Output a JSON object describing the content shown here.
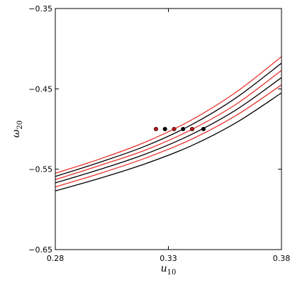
{
  "chart_data": {
    "type": "line",
    "title": "",
    "xlabel": "u",
    "xlabel_sub": "10",
    "ylabel": "ω",
    "ylabel_sub": "20",
    "xlim": [
      0.28,
      0.38
    ],
    "ylim": [
      -0.65,
      -0.35
    ],
    "xticks": [
      0.28,
      0.33,
      0.38
    ],
    "yticks": [
      -0.65,
      -0.55,
      -0.45,
      -0.35
    ],
    "xtick_labels": [
      "0.28",
      "0.33",
      "0.38"
    ],
    "ytick_labels": [
      "−0.65",
      "−0.55",
      "−0.45",
      "−0.35"
    ],
    "grid": false,
    "legend": "none",
    "series": [
      {
        "color": "#e8322b",
        "x": [
          0.28,
          0.3,
          0.32,
          0.34,
          0.36,
          0.38
        ],
        "y": [
          -0.555,
          -0.537,
          -0.516,
          -0.489,
          -0.454,
          -0.41
        ]
      },
      {
        "color": "#000000",
        "x": [
          0.28,
          0.3,
          0.32,
          0.34,
          0.36,
          0.38
        ],
        "y": [
          -0.559,
          -0.541,
          -0.521,
          -0.495,
          -0.461,
          -0.418
        ]
      },
      {
        "color": "#e8322b",
        "x": [
          0.28,
          0.3,
          0.32,
          0.34,
          0.36,
          0.38
        ],
        "y": [
          -0.563,
          -0.545,
          -0.526,
          -0.501,
          -0.469,
          -0.427
        ]
      },
      {
        "color": "#000000",
        "x": [
          0.28,
          0.3,
          0.32,
          0.34,
          0.36,
          0.38
        ],
        "y": [
          -0.567,
          -0.55,
          -0.531,
          -0.507,
          -0.476,
          -0.436
        ]
      },
      {
        "color": "#e8322b",
        "x": [
          0.28,
          0.3,
          0.32,
          0.34,
          0.36,
          0.38
        ],
        "y": [
          -0.572,
          -0.555,
          -0.536,
          -0.513,
          -0.483,
          -0.445
        ]
      },
      {
        "color": "#000000",
        "x": [
          0.28,
          0.3,
          0.32,
          0.34,
          0.36,
          0.38
        ],
        "y": [
          -0.577,
          -0.561,
          -0.543,
          -0.521,
          -0.492,
          -0.455
        ]
      }
    ],
    "points": [
      {
        "x": 0.3245,
        "y": -0.5,
        "color": "#b01818"
      },
      {
        "x": 0.3285,
        "y": -0.5,
        "color": "#000000"
      },
      {
        "x": 0.3325,
        "y": -0.5,
        "color": "#b01818"
      },
      {
        "x": 0.3365,
        "y": -0.5,
        "color": "#000000"
      },
      {
        "x": 0.3405,
        "y": -0.5,
        "color": "#b01818"
      },
      {
        "x": 0.3455,
        "y": -0.5,
        "color": "#000000"
      }
    ]
  }
}
